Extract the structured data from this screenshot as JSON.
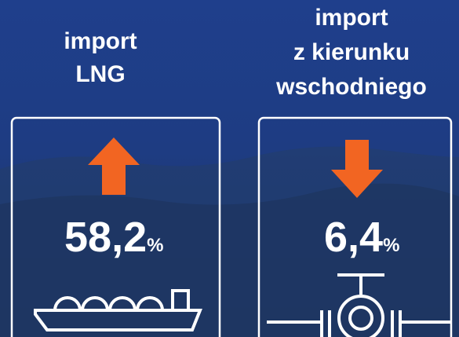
{
  "panels": [
    {
      "title": [
        "import",
        "LNG"
      ],
      "value": "58,2",
      "unit": "%",
      "direction": "up"
    },
    {
      "title": [
        "import",
        "z kierunku",
        "wschodniego"
      ],
      "value": "6,4",
      "unit": "%",
      "direction": "down"
    }
  ]
}
